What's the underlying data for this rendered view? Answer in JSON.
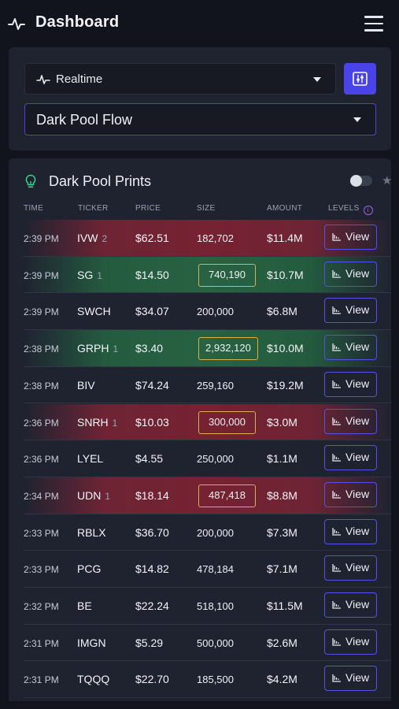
{
  "header": {
    "title": "Dashboard",
    "logo_icon": "pulse-icon",
    "menu_icon": "hamburger-menu-icon"
  },
  "filters": {
    "mode": {
      "label": "Realtime",
      "icon": "pulse-icon"
    },
    "settings_icon": "sliders-icon",
    "flow": {
      "label": "Dark Pool Flow"
    }
  },
  "prints": {
    "title": "Dark Pool Prints",
    "title_icon": "lightbulb-icon",
    "columns": {
      "time": "TIME",
      "ticker": "TICKER",
      "price": "PRICE",
      "size": "SIZE",
      "amount": "AMOUNT",
      "levels": "LEVELS"
    },
    "view_label": "View",
    "colors": {
      "red_row": "#762232",
      "green_row": "#286242",
      "highlight_border": "#d7b24a",
      "accent": "#4a43e8"
    },
    "rows": [
      {
        "time": "2:39 PM",
        "ticker": "IVW",
        "count": "2",
        "price": "$62.51",
        "size": "182,702",
        "amount": "$11.4M",
        "tone": "red",
        "highlight": false
      },
      {
        "time": "2:39 PM",
        "ticker": "SG",
        "count": "1",
        "price": "$14.50",
        "size": "740,190",
        "amount": "$10.7M",
        "tone": "green",
        "highlight": true
      },
      {
        "time": "2:39 PM",
        "ticker": "SWCH",
        "count": "",
        "price": "$34.07",
        "size": "200,000",
        "amount": "$6.8M",
        "tone": "",
        "highlight": false
      },
      {
        "time": "2:38 PM",
        "ticker": "GRPH",
        "count": "1",
        "price": "$3.40",
        "size": "2,932,120",
        "amount": "$10.0M",
        "tone": "green",
        "highlight": true
      },
      {
        "time": "2:38 PM",
        "ticker": "BIV",
        "count": "",
        "price": "$74.24",
        "size": "259,160",
        "amount": "$19.2M",
        "tone": "",
        "highlight": false
      },
      {
        "time": "2:36 PM",
        "ticker": "SNRH",
        "count": "1",
        "price": "$10.03",
        "size": "300,000",
        "amount": "$3.0M",
        "tone": "red",
        "highlight": true
      },
      {
        "time": "2:36 PM",
        "ticker": "LYEL",
        "count": "",
        "price": "$4.55",
        "size": "250,000",
        "amount": "$1.1M",
        "tone": "",
        "highlight": false
      },
      {
        "time": "2:34 PM",
        "ticker": "UDN",
        "count": "1",
        "price": "$18.14",
        "size": "487,418",
        "amount": "$8.8M",
        "tone": "red",
        "highlight": true
      },
      {
        "time": "2:33 PM",
        "ticker": "RBLX",
        "count": "",
        "price": "$36.70",
        "size": "200,000",
        "amount": "$7.3M",
        "tone": "",
        "highlight": false
      },
      {
        "time": "2:33 PM",
        "ticker": "PCG",
        "count": "",
        "price": "$14.82",
        "size": "478,184",
        "amount": "$7.1M",
        "tone": "",
        "highlight": false
      },
      {
        "time": "2:32 PM",
        "ticker": "BE",
        "count": "",
        "price": "$22.24",
        "size": "518,100",
        "amount": "$11.5M",
        "tone": "",
        "highlight": false
      },
      {
        "time": "2:31 PM",
        "ticker": "IMGN",
        "count": "",
        "price": "$5.29",
        "size": "500,000",
        "amount": "$2.6M",
        "tone": "",
        "highlight": false
      },
      {
        "time": "2:31 PM",
        "ticker": "TQQQ",
        "count": "",
        "price": "$22.70",
        "size": "185,500",
        "amount": "$4.2M",
        "tone": "",
        "highlight": false
      }
    ]
  }
}
